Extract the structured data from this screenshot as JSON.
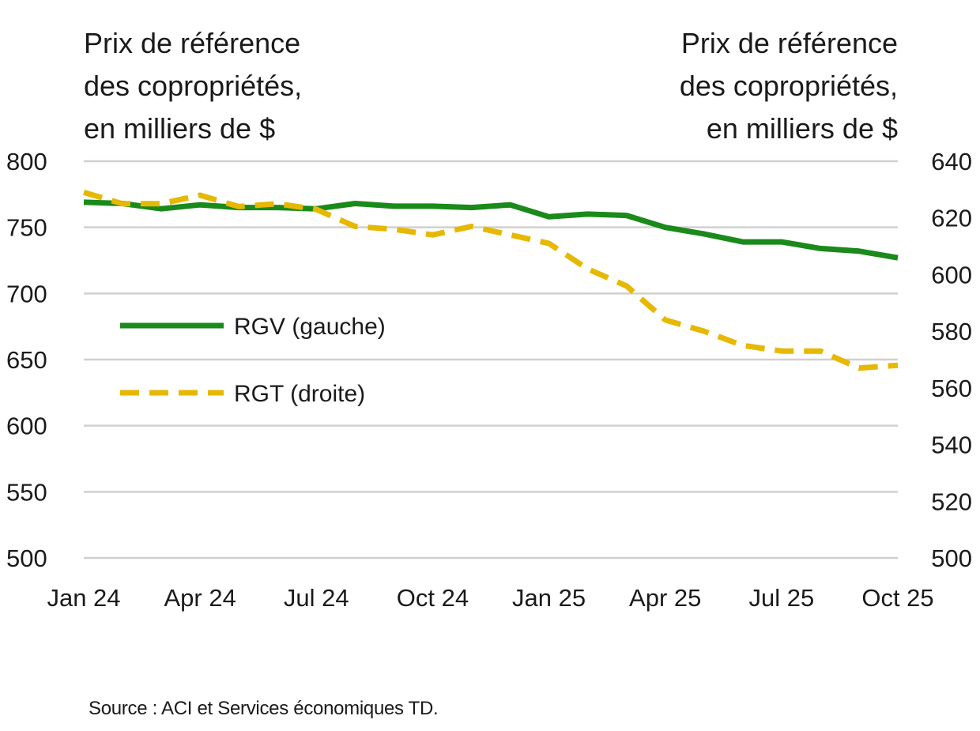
{
  "chart_data": {
    "type": "line",
    "ylabel_left": [
      "Prix de référence",
      "des copropriétés,",
      "en milliers de $"
    ],
    "ylabel_right": [
      "Prix de référence",
      "des copropriétés,",
      "en milliers de $"
    ],
    "x": [
      "2024-01",
      "2024-02",
      "2024-03",
      "2024-04",
      "2024-05",
      "2024-06",
      "2024-07",
      "2024-08",
      "2024-09",
      "2024-10",
      "2024-11",
      "2024-12",
      "2025-01",
      "2025-02",
      "2025-03",
      "2025-04",
      "2025-05",
      "2025-06",
      "2025-07",
      "2025-08",
      "2025-09",
      "2025-10"
    ],
    "x_ticks": [
      "Jan 24",
      "Apr 24",
      "Jul 24",
      "Oct 24",
      "Jan 25",
      "Apr 25",
      "Jul 25",
      "Oct 25"
    ],
    "y_left_ticks": [
      800,
      750,
      700,
      650,
      600,
      550,
      500
    ],
    "y_right_ticks": [
      640,
      620,
      600,
      580,
      560,
      540,
      520,
      500
    ],
    "ylim_left": [
      500,
      800
    ],
    "ylim_right": [
      500,
      640
    ],
    "grid": true,
    "legend_position": "center-left",
    "series": [
      {
        "name": "RGV (gauche)",
        "axis": "left",
        "color": "#1a8a1a",
        "style": "solid",
        "values": [
          769,
          768,
          764,
          767,
          765,
          765,
          764,
          768,
          766,
          766,
          765,
          767,
          758,
          760,
          759,
          750,
          745,
          739,
          739,
          734,
          732,
          727
        ]
      },
      {
        "name": "RGT (droite)",
        "axis": "right",
        "color": "#e6b800",
        "style": "dashed",
        "values": [
          629,
          625,
          625,
          628,
          624,
          625,
          623,
          617,
          616,
          614,
          617,
          614,
          611,
          602,
          596,
          584,
          580,
          575,
          573,
          573,
          567,
          568
        ]
      }
    ]
  },
  "source": "Source : ACI et Services économiques TD."
}
